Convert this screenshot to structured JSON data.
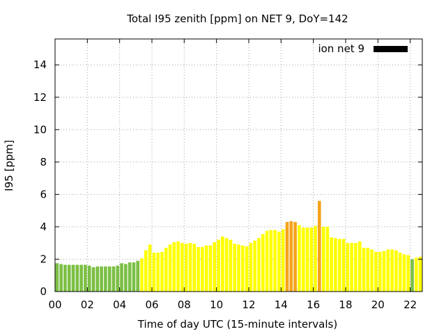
{
  "chart_data": {
    "type": "bar",
    "title": "Total I95 zenith [ppm] on NET 9, DoY=142",
    "xlabel": "Time of day UTC (15-minute intervals)",
    "ylabel": "I95 [ppm]",
    "xlim": [
      0,
      22.75
    ],
    "ylim": [
      0,
      15.6
    ],
    "x_ticks": [
      {
        "value": 0,
        "label": "00"
      },
      {
        "value": 2,
        "label": "02"
      },
      {
        "value": 4,
        "label": "04"
      },
      {
        "value": 6,
        "label": "06"
      },
      {
        "value": 8,
        "label": "08"
      },
      {
        "value": 10,
        "label": "10"
      },
      {
        "value": 12,
        "label": "12"
      },
      {
        "value": 14,
        "label": "14"
      },
      {
        "value": 16,
        "label": "16"
      },
      {
        "value": 18,
        "label": "18"
      },
      {
        "value": 20,
        "label": "20"
      },
      {
        "value": 22,
        "label": "22"
      }
    ],
    "y_ticks": [
      {
        "value": 0,
        "label": "0"
      },
      {
        "value": 2,
        "label": "2"
      },
      {
        "value": 4,
        "label": "4"
      },
      {
        "value": 6,
        "label": "6"
      },
      {
        "value": 8,
        "label": "8"
      },
      {
        "value": 10,
        "label": "10"
      },
      {
        "value": 12,
        "label": "12"
      },
      {
        "value": 14,
        "label": "14"
      }
    ],
    "grid": true,
    "legend": {
      "placement": "top-right",
      "label": "ion net 9",
      "color": "#000000"
    },
    "interval_hours": 0.25,
    "colors": {
      "green": "#7bbf44",
      "yellow": "#ffff00",
      "orange": "#f5a31b"
    },
    "values": [
      1.75,
      1.7,
      1.65,
      1.65,
      1.65,
      1.65,
      1.65,
      1.65,
      1.6,
      1.5,
      1.55,
      1.55,
      1.55,
      1.55,
      1.55,
      1.6,
      1.75,
      1.7,
      1.8,
      1.8,
      1.9,
      2.05,
      2.55,
      2.9,
      2.4,
      2.4,
      2.45,
      2.7,
      2.9,
      3.05,
      3.1,
      3.0,
      2.95,
      3.0,
      2.95,
      2.75,
      2.75,
      2.85,
      2.85,
      3.05,
      3.2,
      3.4,
      3.3,
      3.2,
      2.95,
      2.9,
      2.85,
      2.8,
      3.0,
      3.15,
      3.3,
      3.55,
      3.75,
      3.8,
      3.8,
      3.7,
      3.85,
      4.3,
      4.35,
      4.3,
      4.1,
      3.95,
      3.95,
      3.95,
      4.05,
      5.6,
      4.0,
      4.0,
      3.35,
      3.3,
      3.25,
      3.25,
      3.0,
      3.0,
      3.0,
      3.1,
      2.7,
      2.7,
      2.6,
      2.45,
      2.45,
      2.5,
      2.6,
      2.6,
      2.55,
      2.4,
      2.3,
      2.25,
      2.0,
      2.1,
      2.15
    ],
    "bar_colors": [
      "green",
      "green",
      "green",
      "green",
      "green",
      "green",
      "green",
      "green",
      "green",
      "green",
      "green",
      "green",
      "green",
      "green",
      "green",
      "green",
      "green",
      "green",
      "green",
      "green",
      "green",
      "yellow",
      "yellow",
      "yellow",
      "yellow",
      "yellow",
      "yellow",
      "yellow",
      "yellow",
      "yellow",
      "yellow",
      "yellow",
      "yellow",
      "yellow",
      "yellow",
      "yellow",
      "yellow",
      "yellow",
      "yellow",
      "yellow",
      "yellow",
      "yellow",
      "yellow",
      "yellow",
      "yellow",
      "yellow",
      "yellow",
      "yellow",
      "yellow",
      "yellow",
      "yellow",
      "yellow",
      "yellow",
      "yellow",
      "yellow",
      "yellow",
      "yellow",
      "orange",
      "orange",
      "orange",
      "yellow",
      "yellow",
      "yellow",
      "yellow",
      "yellow",
      "orange",
      "yellow",
      "yellow",
      "yellow",
      "yellow",
      "yellow",
      "yellow",
      "yellow",
      "yellow",
      "yellow",
      "yellow",
      "yellow",
      "yellow",
      "yellow",
      "yellow",
      "yellow",
      "yellow",
      "yellow",
      "yellow",
      "yellow",
      "yellow",
      "yellow",
      "yellow",
      "green",
      "yellow",
      "yellow"
    ]
  }
}
